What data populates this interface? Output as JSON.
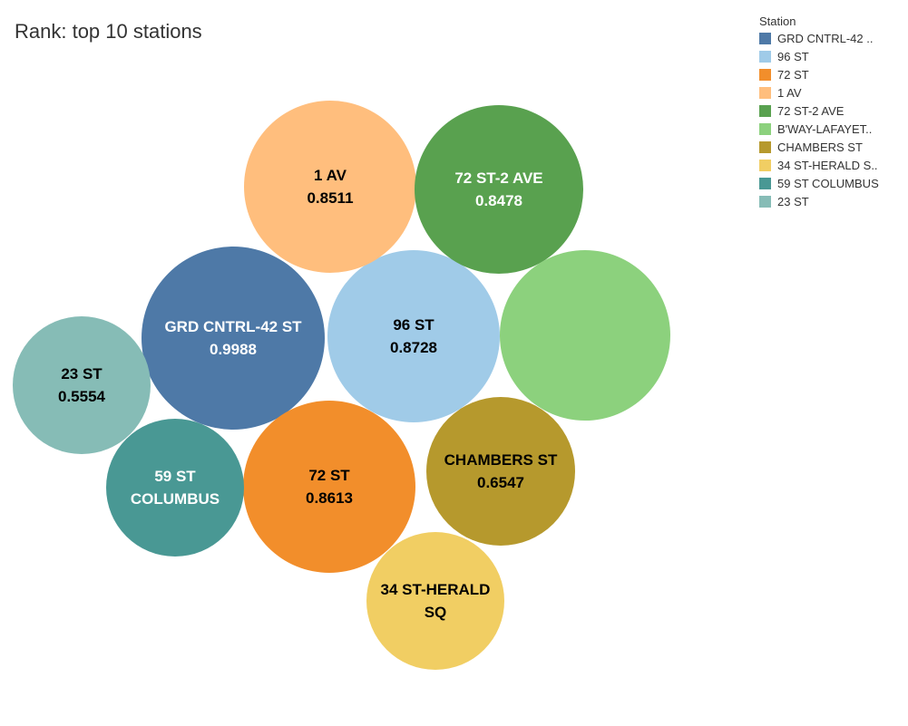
{
  "chart_data": {
    "type": "bubble",
    "title": "Rank: top 10 stations",
    "legend": {
      "title": "Station",
      "position": "top-right",
      "entries": [
        {
          "label": "GRD CNTRL-42 ..",
          "color": "#4e79a7"
        },
        {
          "label": "96 ST",
          "color": "#a0cbe8"
        },
        {
          "label": "72 ST",
          "color": "#f28e2b"
        },
        {
          "label": "1 AV",
          "color": "#ffbe7d"
        },
        {
          "label": "72 ST-2 AVE",
          "color": "#59a14f"
        },
        {
          "label": "B'WAY-LAFAYET..",
          "color": "#8cd17d"
        },
        {
          "label": "CHAMBERS ST",
          "color": "#b6992d"
        },
        {
          "label": "34 ST-HERALD S..",
          "color": "#f1ce63"
        },
        {
          "label": "59 ST COLUMBUS",
          "color": "#499894"
        },
        {
          "label": "23 ST",
          "color": "#86bcb6"
        }
      ]
    },
    "series": [
      {
        "name": "GRD CNTRL-42 ST",
        "value": 0.9988,
        "label_lines": [
          "GRD CNTRL-42 ST",
          "0.9988"
        ],
        "color": "#4e79a7",
        "text_color": "#ffffff"
      },
      {
        "name": "96 ST",
        "value": 0.8728,
        "label_lines": [
          "96 ST",
          "0.8728"
        ],
        "color": "#a0cbe8",
        "text_color": "#000000"
      },
      {
        "name": "72 ST",
        "value": 0.8613,
        "label_lines": [
          "72 ST",
          "0.8613"
        ],
        "color": "#f28e2b",
        "text_color": "#000000"
      },
      {
        "name": "1 AV",
        "value": 0.8511,
        "label_lines": [
          "1 AV",
          "0.8511"
        ],
        "color": "#ffbe7d",
        "text_color": "#000000"
      },
      {
        "name": "72 ST-2 AVE",
        "value": 0.8478,
        "label_lines": [
          "72 ST-2 AVE",
          "0.8478"
        ],
        "color": "#59a14f",
        "text_color": "#ffffff"
      },
      {
        "name": "B'WAY-LAFAYETTE",
        "value": null,
        "label_lines": [],
        "color": "#8cd17d",
        "text_color": "#000000"
      },
      {
        "name": "CHAMBERS ST",
        "value": 0.6547,
        "label_lines": [
          "CHAMBERS ST",
          "0.6547"
        ],
        "color": "#b6992d",
        "text_color": "#000000"
      },
      {
        "name": "34 ST-HERALD SQ",
        "value": null,
        "label_lines": [
          "34 ST-HERALD",
          "SQ"
        ],
        "color": "#f1ce63",
        "text_color": "#000000"
      },
      {
        "name": "59 ST COLUMBUS",
        "value": null,
        "label_lines": [
          "59 ST",
          "COLUMBUS"
        ],
        "color": "#499894",
        "text_color": "#ffffff"
      },
      {
        "name": "23 ST",
        "value": 0.5554,
        "label_lines": [
          "23 ST",
          "0.5554"
        ],
        "color": "#86bcb6",
        "text_color": "#000000"
      }
    ]
  }
}
